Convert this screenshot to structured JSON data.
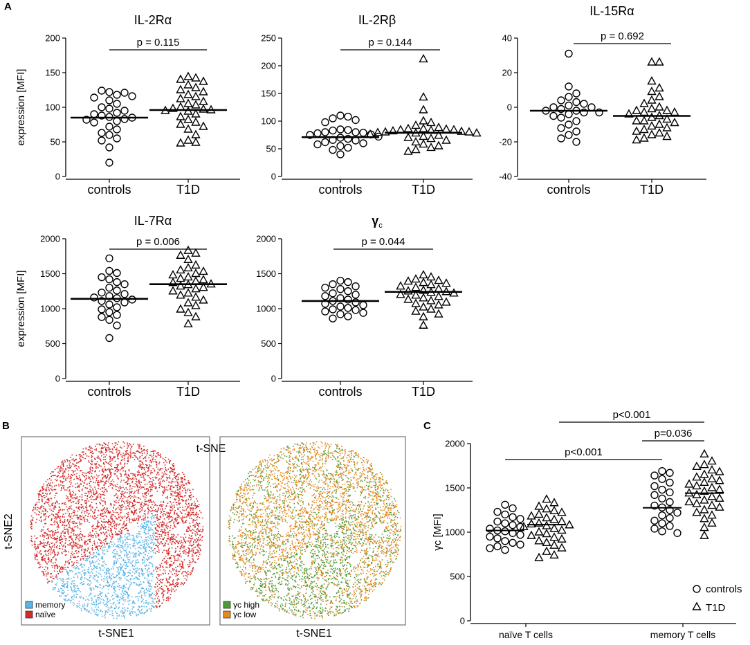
{
  "panel_labels": {
    "a": "A",
    "b": "B",
    "c": "C"
  },
  "chart_data": [
    {
      "id": "il2ra",
      "type": "scatter",
      "title": "IL-2Rα",
      "ylabel": "expression [MFI]",
      "categories": [
        "controls",
        "T1D"
      ],
      "ylim": [
        0,
        200
      ],
      "yticks": [
        0,
        50,
        100,
        150,
        200
      ],
      "pvalue": "p = 0.115",
      "series": [
        {
          "name": "controls",
          "marker": "circle",
          "median": 85,
          "values": [
            122,
            118,
            124,
            121,
            110,
            114,
            116,
            105,
            100,
            98,
            95,
            92,
            90,
            88,
            86,
            85,
            83,
            82,
            80,
            78,
            72,
            68,
            63,
            60,
            55,
            52,
            42,
            20
          ]
        },
        {
          "name": "T1D",
          "marker": "triangle",
          "median": 96,
          "values": [
            144,
            142,
            140,
            137,
            132,
            128,
            125,
            122,
            118,
            115,
            112,
            108,
            105,
            103,
            100,
            98,
            97,
            96,
            95,
            94,
            90,
            86,
            82,
            78,
            75,
            72,
            68,
            60,
            52,
            49,
            48
          ]
        }
      ]
    },
    {
      "id": "il2rb",
      "type": "scatter",
      "title": "IL-2Rβ",
      "ylabel": "",
      "categories": [
        "controls",
        "T1D"
      ],
      "ylim": [
        0,
        250
      ],
      "yticks": [
        0,
        50,
        100,
        150,
        200,
        250
      ],
      "pvalue": "p = 0.144",
      "series": [
        {
          "name": "controls",
          "marker": "circle",
          "median": 71,
          "values": [
            110,
            108,
            105,
            102,
            98,
            85,
            84,
            83,
            80,
            80,
            79,
            78,
            76,
            75,
            72,
            70,
            68,
            66,
            65,
            62,
            60,
            58,
            55,
            52,
            48,
            40
          ]
        },
        {
          "name": "T1D",
          "marker": "triangle",
          "median": 79,
          "values": [
            212,
            143,
            120,
            100,
            97,
            92,
            88,
            86,
            86,
            85,
            84,
            84,
            83,
            82,
            81,
            80,
            80,
            79,
            78,
            78,
            76,
            74,
            72,
            70,
            68,
            65,
            62,
            58,
            55,
            52,
            48,
            45
          ]
        }
      ]
    },
    {
      "id": "il15ra",
      "type": "scatter",
      "title": "IL-15Rα",
      "ylabel": "",
      "categories": [
        "controls",
        "T1D"
      ],
      "ylim": [
        -40,
        40
      ],
      "yticks": [
        -40,
        -20,
        0,
        20,
        40
      ],
      "pvalue": "p = 0.692",
      "series": [
        {
          "name": "controls",
          "marker": "circle",
          "median": -2,
          "values": [
            31,
            12,
            8,
            6,
            4,
            3,
            2,
            1,
            0,
            0,
            -1,
            -2,
            -2,
            -3,
            -3,
            -4,
            -5,
            -6,
            -8,
            -10,
            -12,
            -14,
            -16,
            -18,
            -20
          ]
        },
        {
          "name": "T1D",
          "marker": "triangle",
          "median": -5,
          "values": [
            26,
            26,
            15,
            11,
            9,
            6,
            4,
            2,
            0,
            -1,
            -2,
            -2,
            -3,
            -3,
            -4,
            -5,
            -6,
            -7,
            -8,
            -8,
            -9,
            -10,
            -11,
            -12,
            -13,
            -14,
            -15,
            -16,
            -17,
            -18,
            -19
          ]
        }
      ]
    },
    {
      "id": "il7ra",
      "type": "scatter",
      "title": "IL-7Rα",
      "ylabel": "expression [MFI]",
      "categories": [
        "controls",
        "T1D"
      ],
      "ylim": [
        0,
        2000
      ],
      "yticks": [
        0,
        500,
        1000,
        1500,
        2000
      ],
      "pvalue": "p = 0.006",
      "series": [
        {
          "name": "controls",
          "marker": "circle",
          "median": 1140,
          "values": [
            1720,
            1540,
            1510,
            1450,
            1420,
            1380,
            1350,
            1300,
            1260,
            1230,
            1210,
            1180,
            1160,
            1150,
            1130,
            1110,
            1090,
            1060,
            1020,
            990,
            950,
            910,
            880,
            840,
            760,
            580
          ]
        },
        {
          "name": "T1D",
          "marker": "triangle",
          "median": 1350,
          "values": [
            1830,
            1790,
            1760,
            1700,
            1620,
            1580,
            1550,
            1530,
            1500,
            1480,
            1450,
            1430,
            1410,
            1390,
            1370,
            1350,
            1340,
            1320,
            1300,
            1280,
            1250,
            1220,
            1190,
            1160,
            1120,
            1080,
            1040,
            990,
            940,
            880,
            780
          ]
        }
      ]
    },
    {
      "id": "gammac",
      "type": "scatter",
      "title": "γ",
      "title_sub": "c",
      "ylabel": "",
      "categories": [
        "controls",
        "T1D"
      ],
      "ylim": [
        0,
        2000
      ],
      "yticks": [
        0,
        500,
        1000,
        1500,
        2000
      ],
      "pvalue": "p = 0.044",
      "series": [
        {
          "name": "controls",
          "marker": "circle",
          "median": 1110,
          "values": [
            1400,
            1380,
            1350,
            1320,
            1300,
            1280,
            1250,
            1220,
            1200,
            1180,
            1150,
            1130,
            1110,
            1090,
            1070,
            1050,
            1030,
            1010,
            990,
            980,
            960,
            940,
            920,
            890,
            860
          ]
        },
        {
          "name": "T1D",
          "marker": "triangle",
          "median": 1240,
          "values": [
            1480,
            1450,
            1420,
            1400,
            1390,
            1370,
            1360,
            1340,
            1320,
            1300,
            1280,
            1260,
            1250,
            1240,
            1230,
            1220,
            1200,
            1190,
            1170,
            1150,
            1130,
            1110,
            1090,
            1070,
            1050,
            1020,
            990,
            960,
            920,
            880,
            760
          ]
        }
      ]
    },
    {
      "id": "tsne",
      "type": "scatter",
      "title": "t-SNE",
      "xlabel": "t-SNE1",
      "ylabel": "t-SNE2",
      "panels": [
        {
          "legend": [
            {
              "label": "memory",
              "color": "#5ab4e6"
            },
            {
              "label": "naïve",
              "color": "#d42a2a"
            }
          ]
        },
        {
          "legend": [
            {
              "label": "γc high",
              "color": "#4a9a35"
            },
            {
              "label": "γc low",
              "color": "#e8891e"
            }
          ]
        }
      ]
    },
    {
      "id": "gammac_subsets",
      "type": "scatter",
      "ylabel": "γc [MFI]",
      "categories": [
        "naïve T cells",
        "memory T cells"
      ],
      "ylim": [
        0,
        2000
      ],
      "yticks": [
        0,
        500,
        1000,
        1500,
        2000
      ],
      "comparisons": [
        "p<0.001",
        "p=0.036",
        "p<0.001"
      ],
      "legend": [
        {
          "label": "controls",
          "marker": "circle"
        },
        {
          "label": "T1D",
          "marker": "triangle"
        }
      ],
      "series": [
        {
          "name": "naïve controls",
          "marker": "circle",
          "median": 1020,
          "values": [
            1310,
            1270,
            1230,
            1200,
            1170,
            1150,
            1120,
            1100,
            1080,
            1060,
            1040,
            1020,
            1010,
            990,
            970,
            950,
            930,
            900,
            880,
            860,
            840,
            820,
            800
          ]
        },
        {
          "name": "naïve T1D",
          "marker": "triangle",
          "median": 1085,
          "values": [
            1370,
            1330,
            1290,
            1260,
            1240,
            1220,
            1200,
            1180,
            1160,
            1140,
            1120,
            1100,
            1090,
            1080,
            1070,
            1060,
            1040,
            1020,
            1000,
            980,
            960,
            940,
            920,
            900,
            880,
            850,
            820,
            780,
            740,
            710
          ]
        },
        {
          "name": "memory controls",
          "marker": "circle",
          "median": 1275,
          "values": [
            1690,
            1670,
            1640,
            1600,
            1560,
            1520,
            1480,
            1450,
            1420,
            1380,
            1340,
            1300,
            1280,
            1250,
            1220,
            1190,
            1160,
            1130,
            1100,
            1070,
            1040,
            1010,
            990
          ]
        },
        {
          "name": "memory T1D",
          "marker": "triangle",
          "median": 1440,
          "values": [
            1880,
            1800,
            1760,
            1740,
            1700,
            1680,
            1650,
            1620,
            1600,
            1580,
            1560,
            1540,
            1520,
            1500,
            1480,
            1460,
            1440,
            1420,
            1400,
            1380,
            1360,
            1340,
            1320,
            1300,
            1280,
            1250,
            1220,
            1190,
            1150,
            1100,
            1050,
            960
          ]
        }
      ]
    }
  ]
}
